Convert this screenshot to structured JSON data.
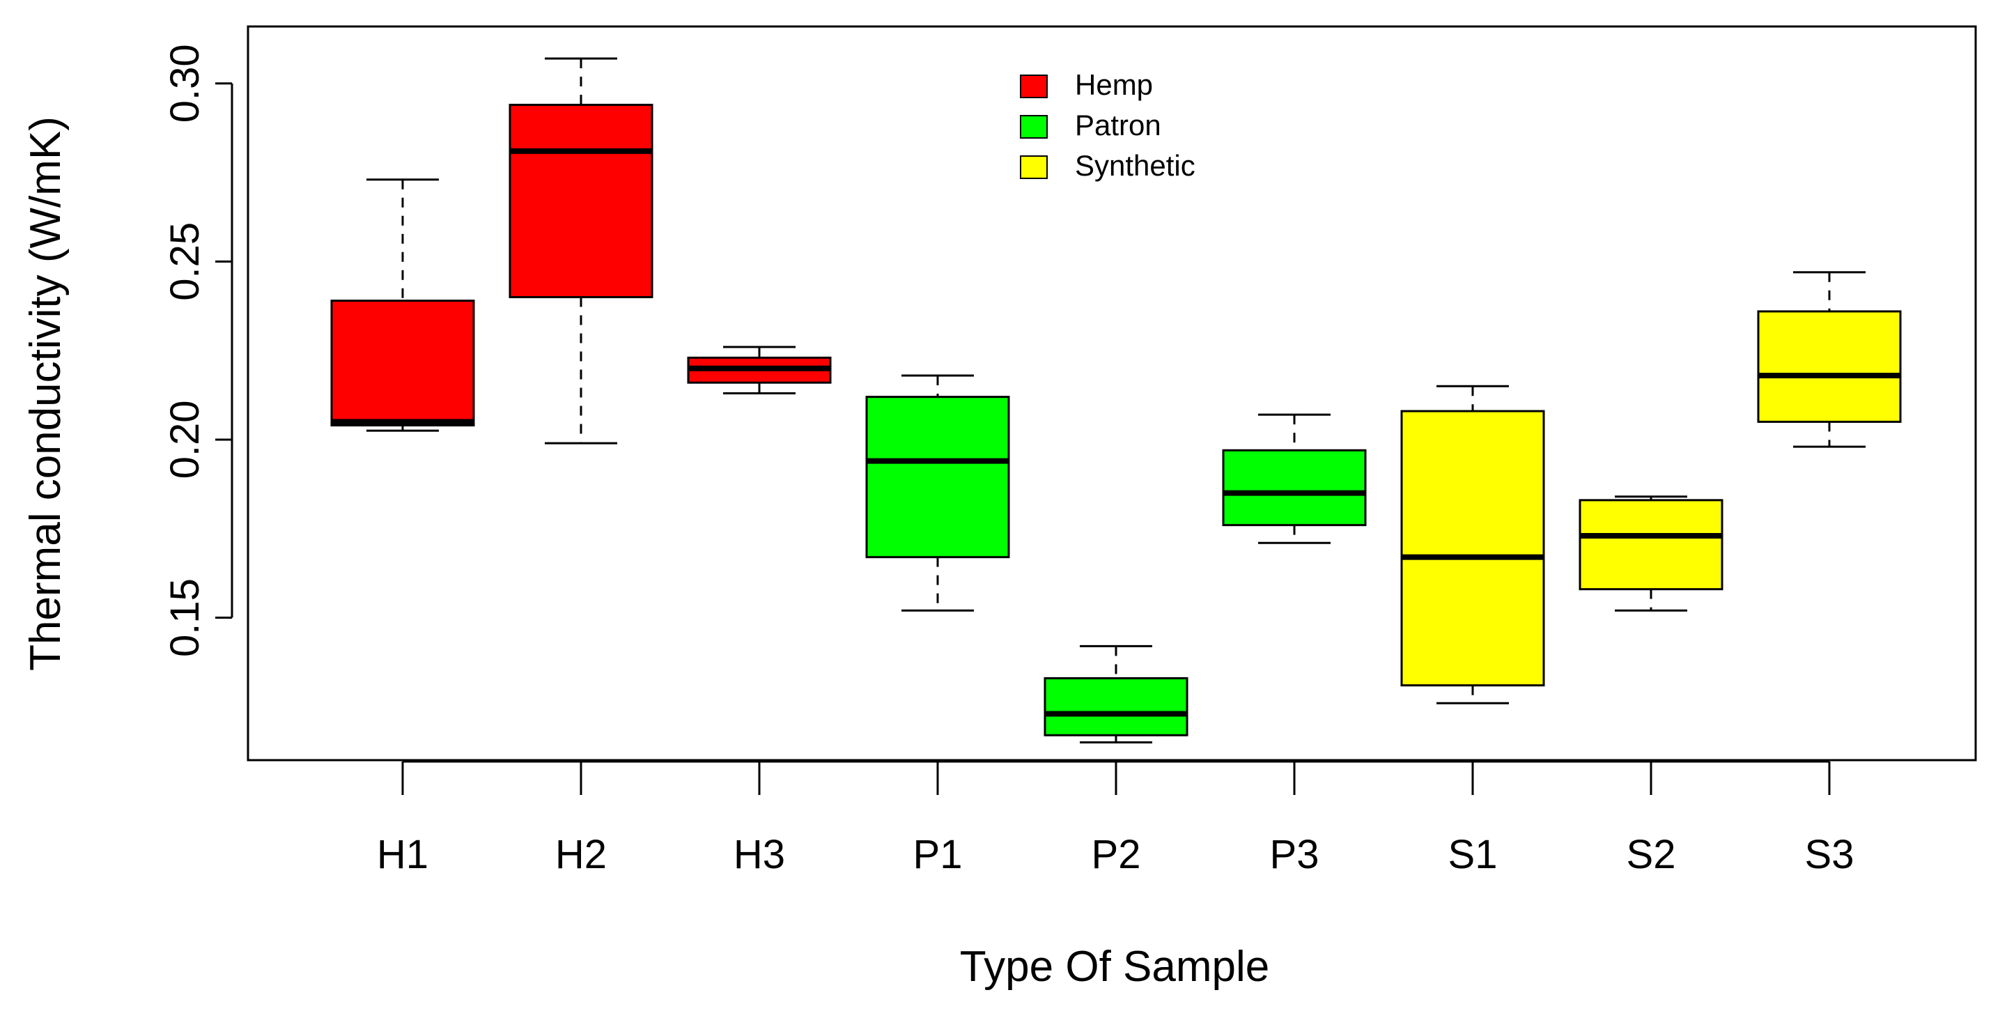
{
  "chart_data": {
    "type": "boxplot",
    "title": "",
    "xlabel": "Type Of Sample",
    "ylabel": "Thermal conductivity (W/mK)",
    "ylim": [
      0.11,
      0.316
    ],
    "yticks": [
      0.15,
      0.2,
      0.25,
      0.3
    ],
    "ytick_labels": [
      "0.15",
      "0.20",
      "0.25",
      "0.30"
    ],
    "grid": false,
    "legend_position": "top-center",
    "legend": [
      {
        "label": "Hemp",
        "color": "#ff0000"
      },
      {
        "label": "Patron",
        "color": "#00ff00"
      },
      {
        "label": "Synthetic",
        "color": "#ffff00"
      }
    ],
    "categories": [
      "H1",
      "H2",
      "H3",
      "P1",
      "P2",
      "P3",
      "S1",
      "S2",
      "S3"
    ],
    "boxes": [
      {
        "label": "H1",
        "group": "Hemp",
        "color": "#ff0000",
        "min": 0.2025,
        "q1": 0.204,
        "median": 0.205,
        "q3": 0.239,
        "max": 0.273
      },
      {
        "label": "H2",
        "group": "Hemp",
        "color": "#ff0000",
        "min": 0.199,
        "q1": 0.24,
        "median": 0.281,
        "q3": 0.294,
        "max": 0.307
      },
      {
        "label": "H3",
        "group": "Hemp",
        "color": "#ff0000",
        "min": 0.213,
        "q1": 0.216,
        "median": 0.22,
        "q3": 0.223,
        "max": 0.226
      },
      {
        "label": "P1",
        "group": "Patron",
        "color": "#00ff00",
        "min": 0.152,
        "q1": 0.167,
        "median": 0.194,
        "q3": 0.212,
        "max": 0.218
      },
      {
        "label": "P2",
        "group": "Patron",
        "color": "#00ff00",
        "min": 0.115,
        "q1": 0.117,
        "median": 0.123,
        "q3": 0.133,
        "max": 0.142
      },
      {
        "label": "P3",
        "group": "Patron",
        "color": "#00ff00",
        "min": 0.171,
        "q1": 0.176,
        "median": 0.185,
        "q3": 0.197,
        "max": 0.207
      },
      {
        "label": "S1",
        "group": "Synthetic",
        "color": "#ffff00",
        "min": 0.126,
        "q1": 0.131,
        "median": 0.167,
        "q3": 0.208,
        "max": 0.215
      },
      {
        "label": "S2",
        "group": "Synthetic",
        "color": "#ffff00",
        "min": 0.152,
        "q1": 0.158,
        "median": 0.173,
        "q3": 0.183,
        "max": 0.184
      },
      {
        "label": "S3",
        "group": "Synthetic",
        "color": "#ffff00",
        "min": 0.198,
        "q1": 0.205,
        "median": 0.218,
        "q3": 0.236,
        "max": 0.247
      }
    ]
  }
}
